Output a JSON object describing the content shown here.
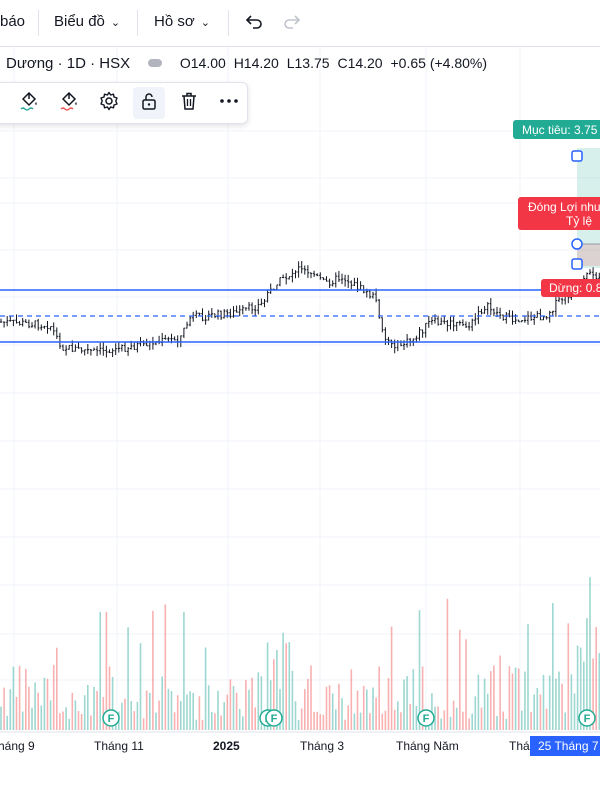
{
  "topbar": {
    "alerts_label": "báo",
    "chart_menu_label": "Biểu đồ",
    "profile_menu_label": "Hồ sơ"
  },
  "legend": {
    "symbol": "Dương · 1D · HSX",
    "open": "O14.00",
    "high": "H14.20",
    "low": "L13.75",
    "close": "C14.20",
    "change": "+0.65 (+4.80%)"
  },
  "labels": {
    "target": "Mục tiêu: 3.75",
    "close_profit": "Đóng Lợi nhuận",
    "ratio": "Tỷ lệ",
    "stop": "Dừng: 0.8",
    "cursor_date": "25 Tháng 7"
  },
  "colors": {
    "up": "#26a69a",
    "down": "#ef5350",
    "level_line": "#2962ff",
    "target_badge": "#22ab94",
    "stop_badge": "#f23645"
  },
  "icons": [
    "paint-bucket-icon",
    "pen-color-icon",
    "settings-icon",
    "unlock-icon",
    "trash-icon",
    "more-icon",
    "undo-icon",
    "redo-icon",
    "earnings-icon"
  ],
  "chart_data": {
    "type": "candlestick",
    "x_tick_labels": [
      "háng 9",
      "Tháng 11",
      "2025",
      "Tháng 3",
      "Tháng Năm",
      "Thá"
    ],
    "earnings_markers": [
      "F",
      "F",
      "F",
      "F"
    ],
    "price_panel": {
      "horizontal_levels": [
        "upper",
        "middle-dashed",
        "lower"
      ]
    },
    "volume": {
      "note": "relative volume bars, colored by candle direction"
    }
  }
}
